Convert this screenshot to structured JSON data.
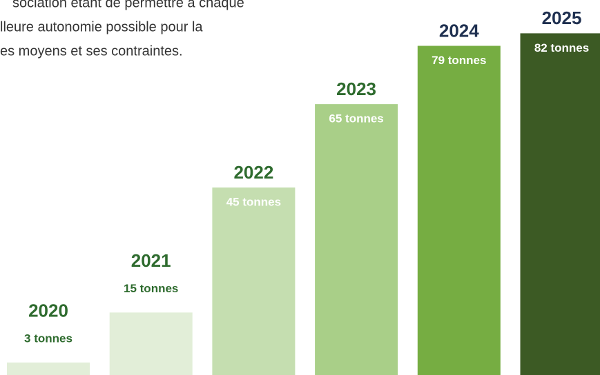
{
  "chart_data": {
    "type": "bar",
    "text_lines": [
      "sociation étant de permettre à chaque",
      "lleure autonomie possible pour la",
      "es moyens et ses contraintes."
    ],
    "categories": [
      "2020",
      "2021",
      "2022",
      "2023",
      "2024",
      "2025"
    ],
    "values": [
      3,
      15,
      45,
      65,
      79,
      82
    ],
    "value_labels": [
      "3 tonnes",
      "15 tonnes",
      "45 tonnes",
      "65 tonnes",
      "79 tonnes",
      "82 tonnes"
    ],
    "colors": [
      "#e2eed8",
      "#e2eed8",
      "#c5deb0",
      "#a9cf88",
      "#76ad42",
      "#3c5a24"
    ],
    "year_colors": [
      "#2e6b2e",
      "#2e6b2e",
      "#2e6b2e",
      "#2e6b2e",
      "#1f3050",
      "#1f3050"
    ],
    "ylim": [
      0,
      90
    ]
  }
}
